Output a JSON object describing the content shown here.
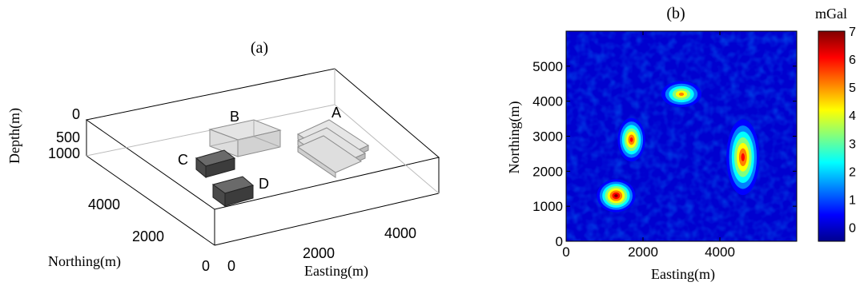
{
  "panel_a": {
    "label": "(a)",
    "z_axis_label": "Depth(m)",
    "y_axis_label": "Northing(m)",
    "x_axis_label": "Easting(m)",
    "z_ticks": [
      "0",
      "500",
      "1000"
    ],
    "y_ticks": [
      "4000",
      "2000",
      "0"
    ],
    "x_ticks": [
      "0",
      "2000",
      "4000"
    ],
    "bodies": [
      "A",
      "B",
      "C",
      "D"
    ],
    "colors": {
      "box_edge": "#000000",
      "body_dark": "#4a4a4a",
      "body_light": "#d8d8d8",
      "body_wire": "#8c8c8c"
    }
  },
  "panel_b": {
    "label": "(b)",
    "colorbar_label": "mGal",
    "colorbar_ticks": [
      "7",
      "6",
      "5",
      "4",
      "3",
      "2",
      "1",
      "0"
    ],
    "colormap": [
      "#00008f",
      "#0000ff",
      "#0080ff",
      "#00ffff",
      "#80ff80",
      "#ffff00",
      "#ff8000",
      "#ff0000",
      "#800000"
    ]
  },
  "chart_data": {
    "type": "heatmap",
    "title": "(b)",
    "xlabel": "Easting(m)",
    "ylabel": "Northing(m)",
    "x_ticks": [
      0,
      2000,
      4000
    ],
    "y_ticks": [
      0,
      1000,
      2000,
      3000,
      4000,
      5000
    ],
    "xlim": [
      0,
      6000
    ],
    "ylim": [
      0,
      6000
    ],
    "colorbar": {
      "label": "mGal",
      "range": [
        0,
        7
      ]
    },
    "anomalies": [
      {
        "x": 1300,
        "y": 1300,
        "peak": 7.0
      },
      {
        "x": 1700,
        "y": 2900,
        "peak": 6.3
      },
      {
        "x": 3000,
        "y": 4200,
        "peak": 5.2
      },
      {
        "x": 4600,
        "y": 2400,
        "peak": 6.0
      }
    ]
  }
}
